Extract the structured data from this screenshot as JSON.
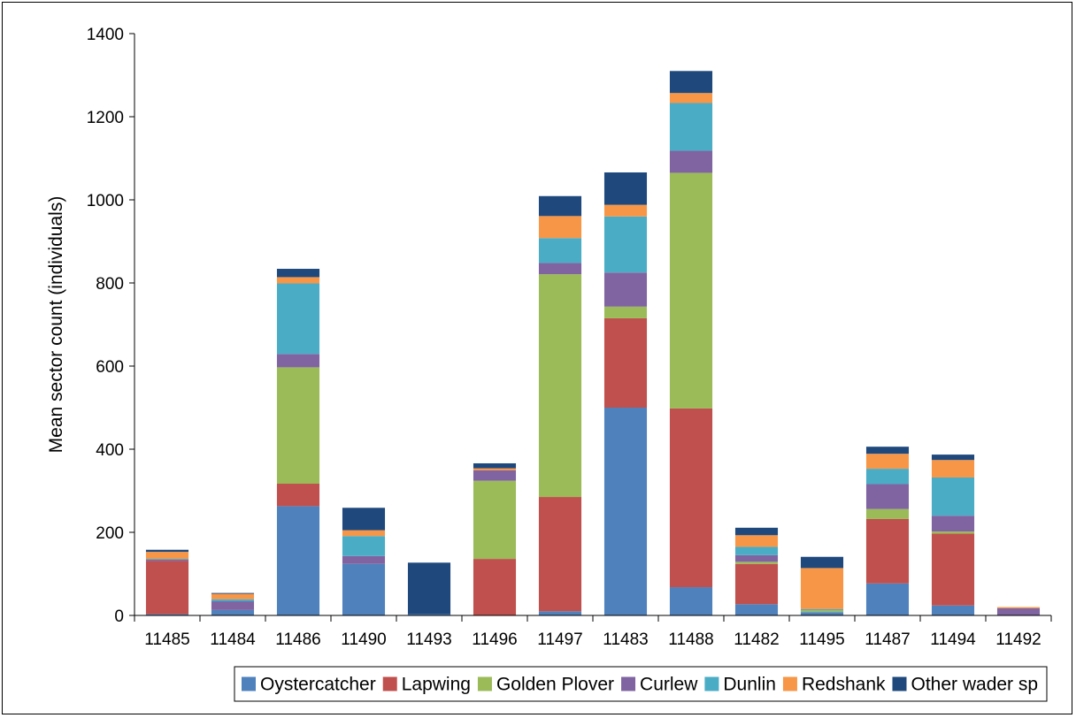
{
  "chart_data": {
    "type": "bar",
    "stacked": true,
    "title": "",
    "xlabel": "",
    "ylabel": "Mean sector count (individuals)",
    "ylim": [
      0,
      1400
    ],
    "yticks": [
      0,
      200,
      400,
      600,
      800,
      1000,
      1200,
      1400
    ],
    "grid": false,
    "legend_position": "bottom",
    "categories": [
      "11485",
      "11484",
      "11486",
      "11490",
      "11493",
      "11496",
      "11497",
      "11483",
      "11488",
      "11482",
      "11495",
      "11487",
      "11494",
      "11492"
    ],
    "series": [
      {
        "name": "Oystercatcher",
        "color": "#4F81BD",
        "values": [
          3,
          13,
          263,
          124,
          3,
          0,
          10,
          500,
          68,
          27,
          8,
          77,
          24,
          0
        ]
      },
      {
        "name": "Lapwing",
        "color": "#C0504D",
        "values": [
          128,
          0,
          54,
          0,
          0,
          136,
          275,
          215,
          430,
          97,
          0,
          155,
          173,
          0
        ]
      },
      {
        "name": "Golden Plover",
        "color": "#9BBB59",
        "values": [
          0,
          0,
          280,
          0,
          0,
          188,
          536,
          28,
          567,
          5,
          4,
          24,
          5,
          0
        ]
      },
      {
        "name": "Curlew",
        "color": "#8064A2",
        "values": [
          3,
          21,
          32,
          19,
          0,
          25,
          27,
          82,
          53,
          16,
          0,
          60,
          38,
          17
        ]
      },
      {
        "name": "Dunlin",
        "color": "#4BACC6",
        "values": [
          2,
          5,
          170,
          48,
          0,
          0,
          60,
          135,
          115,
          20,
          3,
          37,
          92,
          0
        ]
      },
      {
        "name": "Redshank",
        "color": "#F79646",
        "values": [
          17,
          13,
          15,
          14,
          0,
          5,
          53,
          28,
          24,
          28,
          99,
          36,
          42,
          3
        ]
      },
      {
        "name": "Other wader sp",
        "color": "#1F497D",
        "values": [
          5,
          2,
          20,
          54,
          124,
          12,
          48,
          78,
          53,
          18,
          27,
          17,
          13,
          0
        ]
      }
    ]
  }
}
